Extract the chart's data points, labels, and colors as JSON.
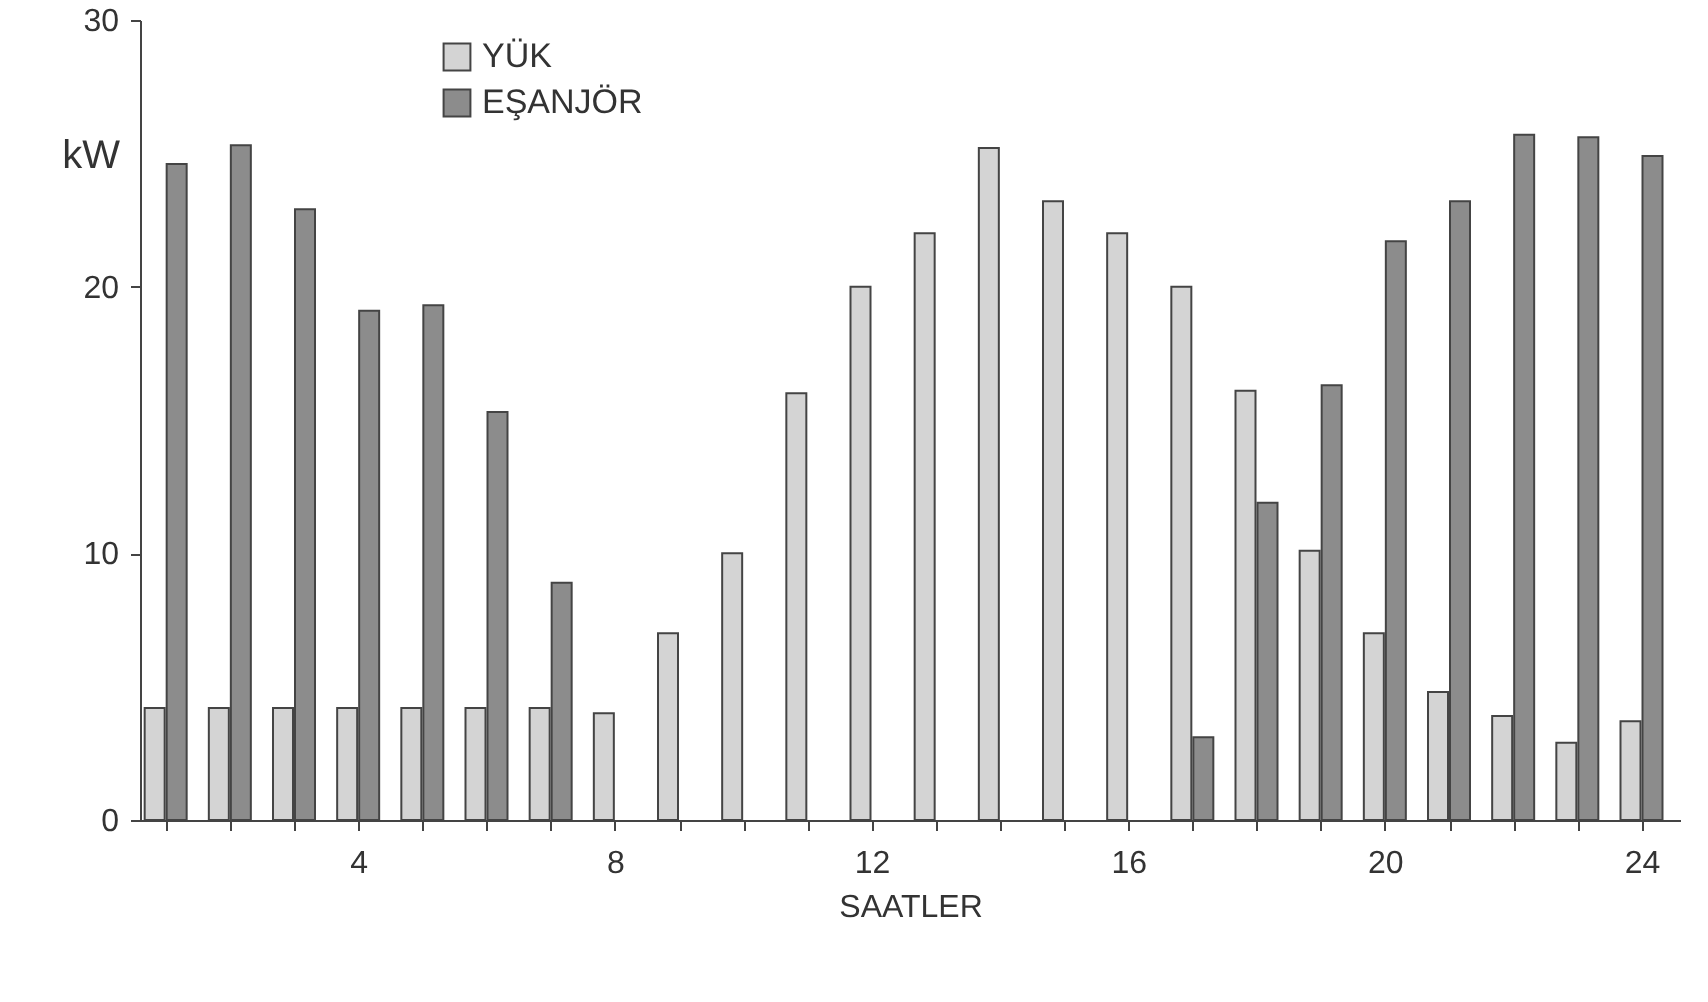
{
  "chart_data": {
    "type": "bar",
    "xlabel": "SAATLER",
    "ylabel": "kW",
    "x": [
      1,
      2,
      3,
      4,
      5,
      6,
      7,
      8,
      9,
      10,
      11,
      12,
      13,
      14,
      15,
      16,
      17,
      18,
      19,
      20,
      21,
      22,
      23,
      24
    ],
    "series": [
      {
        "name": "YÜK",
        "color": "#d4d4d4",
        "values": [
          4.2,
          4.2,
          4.2,
          4.2,
          4.2,
          4.2,
          4.2,
          4,
          7,
          10,
          16,
          20,
          22,
          25.2,
          23.2,
          22,
          20,
          16.1,
          10.1,
          7,
          4.8,
          3.9,
          2.9,
          3.7
        ]
      },
      {
        "name": "EŞANJÖR",
        "color": "#8c8c8c",
        "values": [
          24.6,
          25.3,
          22.9,
          19.1,
          19.3,
          15.3,
          8.9,
          null,
          null,
          null,
          null,
          null,
          null,
          null,
          null,
          null,
          3.1,
          11.9,
          16.3,
          21.7,
          23.2,
          25.7,
          25.6,
          24.9
        ]
      }
    ],
    "xlim": [
      0.6,
      24.6
    ],
    "xticks": [
      {
        "value": 1,
        "label": null
      },
      {
        "value": 2,
        "label": null
      },
      {
        "value": 3,
        "label": null
      },
      4,
      {
        "value": 5,
        "label": null
      },
      {
        "value": 6,
        "label": null
      },
      {
        "value": 7,
        "label": null
      },
      8,
      {
        "value": 9,
        "label": null
      },
      {
        "value": 10,
        "label": null
      },
      {
        "value": 11,
        "label": null
      },
      12,
      {
        "value": 13,
        "label": null
      },
      {
        "value": 14,
        "label": null
      },
      {
        "value": 15,
        "label": null
      },
      16,
      {
        "value": 17,
        "label": null
      },
      {
        "value": 18,
        "label": null
      },
      {
        "value": 19,
        "label": null
      },
      20,
      {
        "value": 21,
        "label": null
      },
      {
        "value": 22,
        "label": null
      },
      {
        "value": 23,
        "label": null
      },
      24
    ],
    "ylim": [
      0,
      30
    ],
    "yticks": [
      0,
      10,
      20,
      30
    ],
    "grid": false,
    "legend": "top left"
  }
}
